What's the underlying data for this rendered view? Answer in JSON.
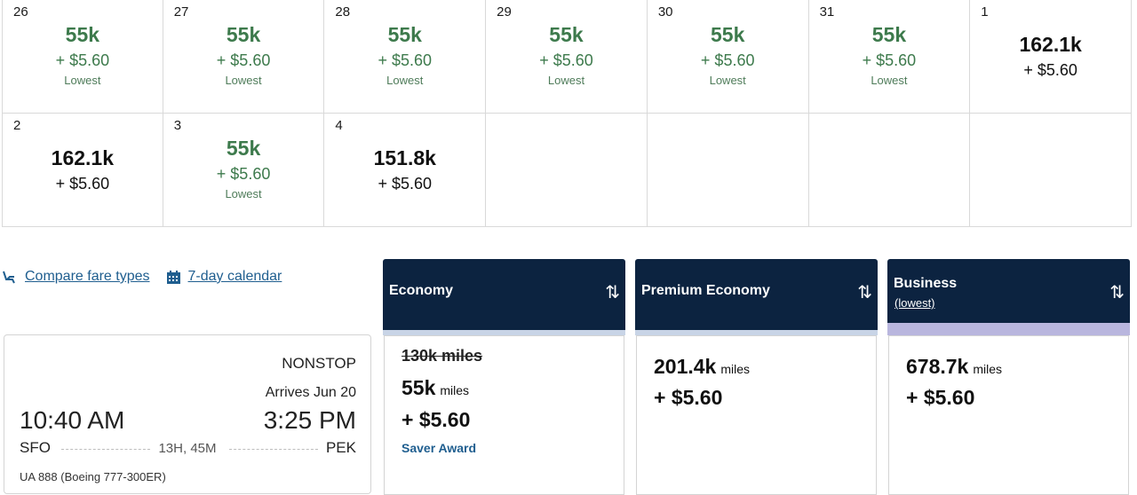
{
  "calendar": {
    "cells": [
      {
        "day": "26",
        "miles": "55k",
        "fee": "+ $5.60",
        "label": "Lowest",
        "style": "green"
      },
      {
        "day": "27",
        "miles": "55k",
        "fee": "+ $5.60",
        "label": "Lowest",
        "style": "green"
      },
      {
        "day": "28",
        "miles": "55k",
        "fee": "+ $5.60",
        "label": "Lowest",
        "style": "green"
      },
      {
        "day": "29",
        "miles": "55k",
        "fee": "+ $5.60",
        "label": "Lowest",
        "style": "green"
      },
      {
        "day": "30",
        "miles": "55k",
        "fee": "+ $5.60",
        "label": "Lowest",
        "style": "green"
      },
      {
        "day": "31",
        "miles": "55k",
        "fee": "+ $5.60",
        "label": "Lowest",
        "style": "green"
      },
      {
        "day": "1",
        "miles": "162.1k",
        "fee": "+ $5.60",
        "label": "",
        "style": "black"
      },
      {
        "day": "2",
        "miles": "162.1k",
        "fee": "+ $5.60",
        "label": "",
        "style": "black"
      },
      {
        "day": "3",
        "miles": "55k",
        "fee": "+ $5.60",
        "label": "Lowest",
        "style": "green"
      },
      {
        "day": "4",
        "miles": "151.8k",
        "fee": "+ $5.60",
        "label": "",
        "style": "black"
      },
      {
        "day": "",
        "miles": "",
        "fee": "",
        "label": "",
        "style": "empty"
      },
      {
        "day": "",
        "miles": "",
        "fee": "",
        "label": "",
        "style": "empty"
      },
      {
        "day": "",
        "miles": "",
        "fee": "",
        "label": "",
        "style": "empty"
      },
      {
        "day": "",
        "miles": "",
        "fee": "",
        "label": "",
        "style": "empty"
      }
    ]
  },
  "links": {
    "compare": "Compare fare types",
    "calendar7": "7-day calendar"
  },
  "flight": {
    "nonstop": "NONSTOP",
    "arrives": "Arrives Jun 20",
    "depart_time": "10:40 AM",
    "arrive_time": "3:25 PM",
    "origin": "SFO",
    "destination": "PEK",
    "duration": "13H, 45M",
    "flight_info": "UA 888 (Boeing 777-300ER)"
  },
  "cabins": {
    "economy": {
      "title": "Economy",
      "sub": ""
    },
    "premium": {
      "title": "Premium Economy",
      "sub": ""
    },
    "business": {
      "title": "Business",
      "sub": "(lowest)"
    }
  },
  "fares": {
    "economy": {
      "original": "130k miles",
      "miles": "55k",
      "unit": "miles",
      "fee": "+ $5.60",
      "badge": "Saver Award"
    },
    "premium": {
      "miles": "201.4k",
      "unit": "miles",
      "fee": "+ $5.60"
    },
    "business": {
      "miles": "678.7k",
      "unit": "miles",
      "fee": "+ $5.60"
    }
  },
  "icons": {
    "sort": "sort-arrows-icon",
    "seat": "seat-icon",
    "calendar": "calendar-icon"
  },
  "colors": {
    "navy": "#0c2340",
    "green": "#3d7a4c",
    "link": "#1f5e8f"
  }
}
